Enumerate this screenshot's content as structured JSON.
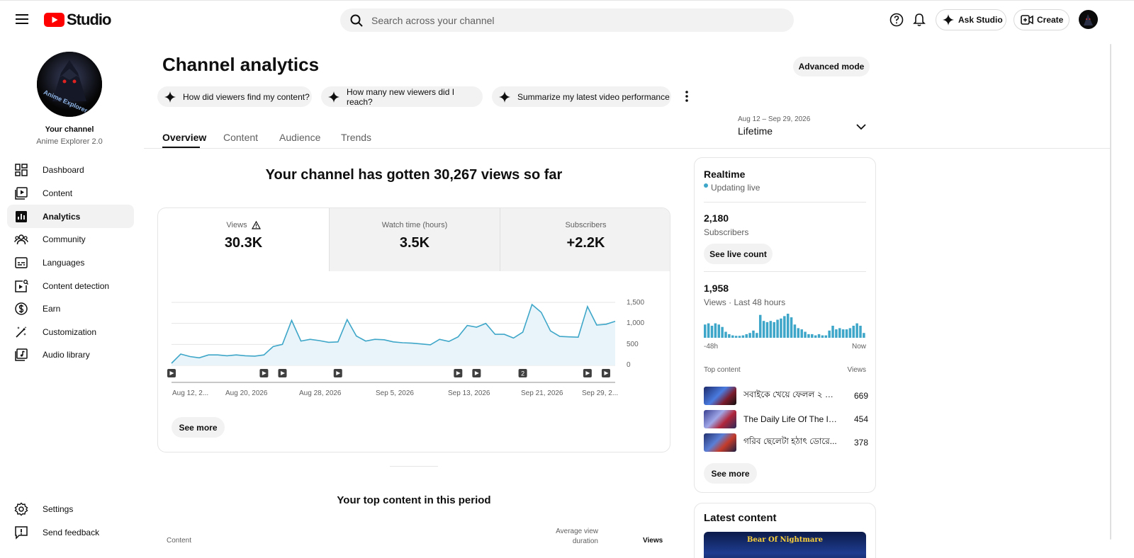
{
  "header": {
    "app_name": "Studio",
    "search_placeholder": "Search across your channel",
    "ask_studio_label": "Ask Studio",
    "create_label": "Create"
  },
  "sidebar": {
    "channel_heading": "Your channel",
    "channel_name": "Anime Explorer 2.0",
    "avatar_text": "Anime Explorer BD",
    "items": [
      {
        "label": "Dashboard",
        "icon": "dashboard-icon"
      },
      {
        "label": "Content",
        "icon": "content-icon"
      },
      {
        "label": "Analytics",
        "icon": "analytics-icon",
        "active": true
      },
      {
        "label": "Community",
        "icon": "community-icon"
      },
      {
        "label": "Languages",
        "icon": "languages-icon"
      },
      {
        "label": "Content detection",
        "icon": "content-detection-icon"
      },
      {
        "label": "Earn",
        "icon": "earn-icon"
      },
      {
        "label": "Customization",
        "icon": "customization-icon"
      },
      {
        "label": "Audio library",
        "icon": "audio-library-icon"
      }
    ],
    "bottom_items": [
      {
        "label": "Settings",
        "icon": "settings-icon"
      },
      {
        "label": "Send feedback",
        "icon": "feedback-icon"
      }
    ]
  },
  "main": {
    "page_title": "Channel analytics",
    "advanced_mode_label": "Advanced mode",
    "suggestions": [
      "How did viewers find my content?",
      "How many new viewers did I reach?",
      "Summarize my latest video performance"
    ],
    "tabs": [
      "Overview",
      "Content",
      "Audience",
      "Trends"
    ],
    "date_range": {
      "dates": "Aug 12 – Sep 29, 2026",
      "label": "Lifetime"
    },
    "headline": "Your channel has gotten 30,267 views so far",
    "metrics": [
      {
        "label": "Views",
        "value": "30.3K",
        "selected": true,
        "warning": true
      },
      {
        "label": "Watch time (hours)",
        "value": "3.5K"
      },
      {
        "label": "Subscribers",
        "value": "+2.2K"
      }
    ],
    "see_more_label": "See more",
    "top_content_title": "Your top content in this period",
    "table_headers": {
      "content": "Content",
      "avg_duration": "Average view duration",
      "views": "Views"
    }
  },
  "chart_data": {
    "type": "area",
    "series": [
      {
        "values": [
          50,
          270,
          210,
          180,
          250,
          250,
          230,
          250,
          230,
          220,
          250,
          450,
          500,
          1070,
          580,
          620,
          590,
          550,
          560,
          1090,
          700,
          580,
          620,
          610,
          560,
          540,
          530,
          510,
          490,
          620,
          570,
          680,
          950,
          910,
          1000,
          740,
          740,
          650,
          790,
          1450,
          1260,
          820,
          690,
          680,
          670,
          1400,
          960,
          980,
          1050
        ]
      }
    ],
    "x_ticks": [
      "Aug 12, 2...",
      "Aug 20, 2026",
      "Aug 28, 2026",
      "Sep 5, 2026",
      "Sep 13, 2026",
      "Sep 21, 2026",
      "Sep 29, 2..."
    ],
    "y_ticks": [
      "1,500",
      "1,000",
      "500",
      "0"
    ],
    "ylim": [
      0,
      1500
    ],
    "grid": true,
    "color": "#3ea6c8",
    "markers": [
      {
        "day": 0,
        "label": ""
      },
      {
        "day": 10,
        "label": ""
      },
      {
        "day": 12,
        "label": ""
      },
      {
        "day": 18,
        "label": ""
      },
      {
        "day": 31,
        "label": ""
      },
      {
        "day": 33,
        "label": ""
      },
      {
        "day": 38,
        "label": "2"
      },
      {
        "day": 45,
        "label": ""
      },
      {
        "day": 47,
        "label": ""
      }
    ]
  },
  "realtime": {
    "title": "Realtime",
    "status": "Updating live",
    "subscribers_value": "2,180",
    "subscribers_label": "Subscribers",
    "live_count_button": "See live count",
    "views_value": "1,958",
    "views_label": "Views · Last 48 hours",
    "bars": [
      0.55,
      0.6,
      0.5,
      0.6,
      0.55,
      0.45,
      0.25,
      0.15,
      0.1,
      0.08,
      0.08,
      0.1,
      0.15,
      0.2,
      0.3,
      0.2,
      0.95,
      0.7,
      0.65,
      0.7,
      0.65,
      0.75,
      0.8,
      0.9,
      1.0,
      0.85,
      0.55,
      0.4,
      0.35,
      0.25,
      0.15,
      0.15,
      0.1,
      0.15,
      0.1,
      0.1,
      0.3,
      0.5,
      0.35,
      0.4,
      0.35,
      0.35,
      0.4,
      0.5,
      0.6,
      0.5,
      0.2
    ],
    "axis_left": "-48h",
    "axis_right": "Now",
    "top_content_label": "Top content",
    "top_views_label": "Views",
    "top_items": [
      {
        "title": "সবাইকে খেয়ে ফেলল ২ মি...",
        "views": "669"
      },
      {
        "title": "The Daily Life Of The Im...",
        "views": "454"
      },
      {
        "title": "গরিব ছেলেটা হঠাৎ ডোরে...",
        "views": "378"
      }
    ],
    "see_more_label": "See more"
  },
  "latest": {
    "title": "Latest content",
    "thumb_text": "Bear Of Nightmare"
  },
  "colors": {
    "accent": "#3ea6c8",
    "brand_red": "#ff0000"
  }
}
